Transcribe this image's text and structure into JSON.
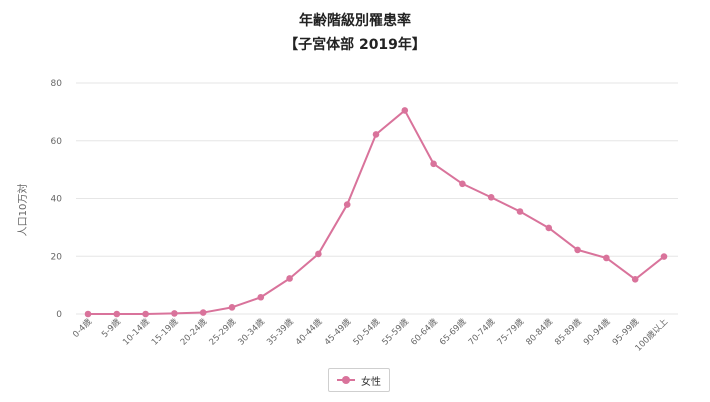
{
  "chart_data": {
    "type": "line",
    "title": "年齢階級別罹患率",
    "subtitle": "【子宮体部 2019年】",
    "ylabel": "人口10万対",
    "xlabel": "",
    "ylim": [
      0,
      80
    ],
    "yticks": [
      0,
      20,
      40,
      60,
      80
    ],
    "grid": true,
    "legend_position": "bottom-center",
    "categories": [
      "0-4歳",
      "5-9歳",
      "10-14歳",
      "15-19歳",
      "20-24歳",
      "25-29歳",
      "30-34歳",
      "35-39歳",
      "40-44歳",
      "45-49歳",
      "50-54歳",
      "55-59歳",
      "60-64歳",
      "65-69歳",
      "70-74歳",
      "75-79歳",
      "80-84歳",
      "85-89歳",
      "90-94歳",
      "95-99歳",
      "100歳以上"
    ],
    "series": [
      {
        "name": "女性",
        "color": "#d9739b",
        "values": [
          0.0,
          0.0,
          0.0,
          0.2,
          0.5,
          2.3,
          5.8,
          12.3,
          20.8,
          37.9,
          62.2,
          70.5,
          52.0,
          45.1,
          40.4,
          35.5,
          29.8,
          22.2,
          19.4,
          12.0,
          19.9
        ]
      }
    ]
  },
  "colors": {
    "series": "#d9739b",
    "grid": "#e6e6e6",
    "axis_text": "#666666",
    "title": "#222222"
  }
}
